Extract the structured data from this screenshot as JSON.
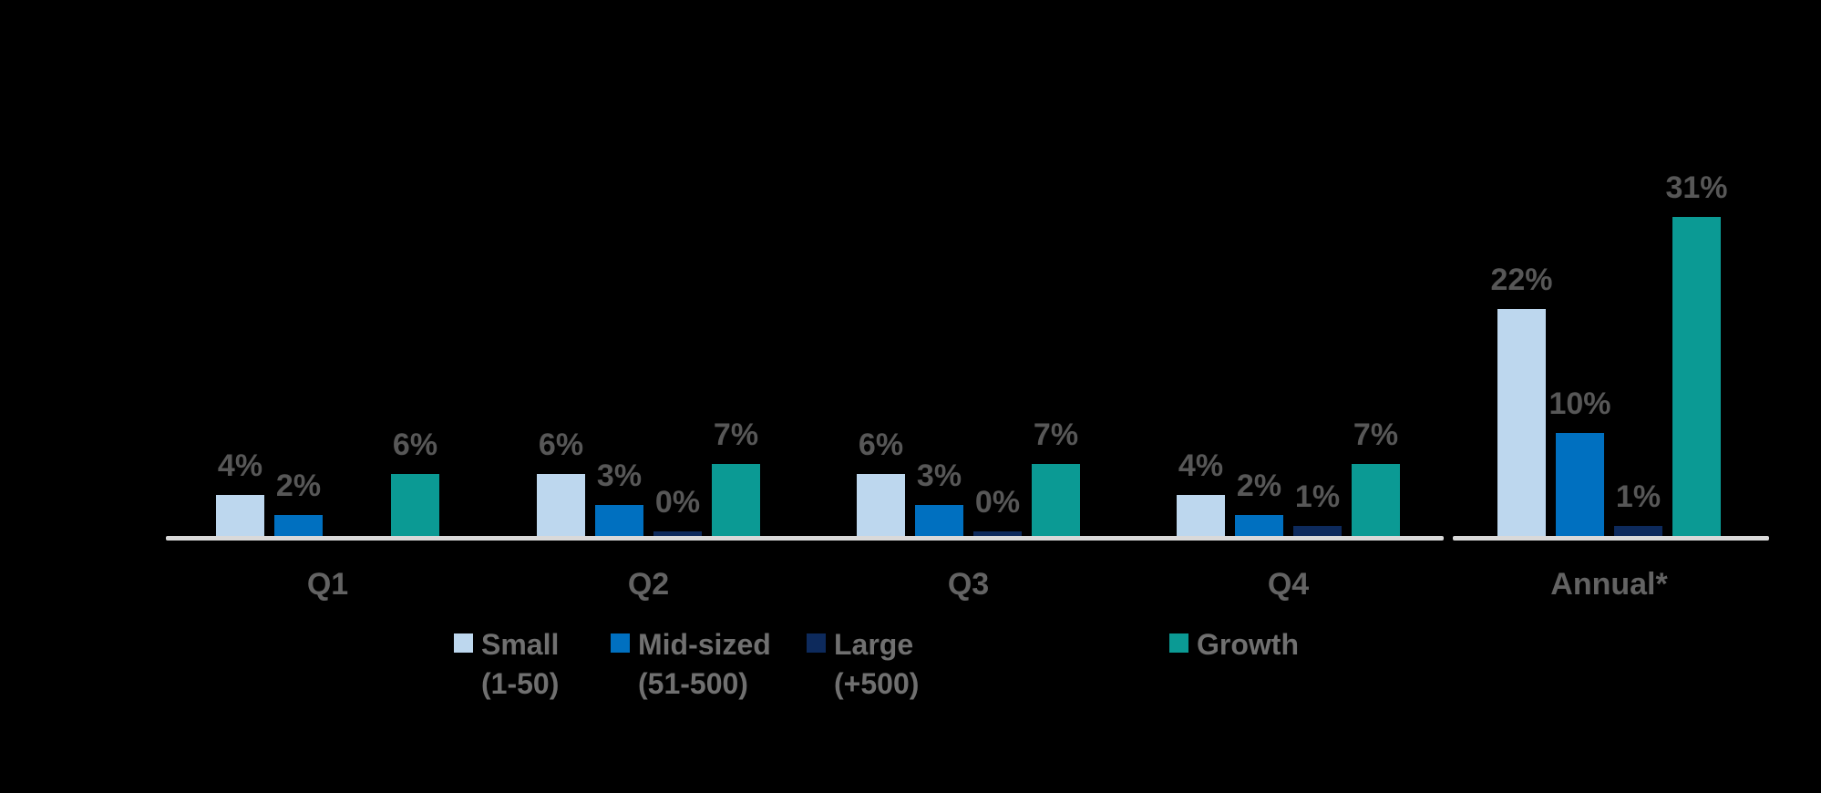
{
  "chart_data": {
    "type": "bar",
    "title": "",
    "xlabel": "",
    "ylabel": "",
    "categories": [
      "Q1",
      "Q2",
      "Q3",
      "Q4",
      "Annual*"
    ],
    "series": [
      {
        "key": "small",
        "name": "Small (1-50)",
        "legend_lines": [
          "Small",
          "(1-50)"
        ],
        "color": "#BDD7EE",
        "values": [
          4,
          6,
          6,
          4,
          22
        ]
      },
      {
        "key": "mid-sized",
        "name": "Mid-sized (51-500)",
        "legend_lines": [
          "Mid-sized",
          "(51-500)"
        ],
        "color": "#0070C0",
        "values": [
          2,
          3,
          3,
          2,
          10
        ]
      },
      {
        "key": "large",
        "name": "Large (+500)",
        "legend_lines": [
          "Large",
          "(+500)"
        ],
        "color": "#0D2A5C",
        "values": [
          null,
          0,
          0,
          1,
          1
        ]
      },
      {
        "key": "growth",
        "name": "Growth",
        "legend_lines": [
          "Growth"
        ],
        "color": "#0B9A94",
        "values": [
          6,
          7,
          7,
          7,
          31
        ]
      }
    ],
    "value_label_suffix": "%",
    "value_labels": {
      "small": [
        "4%",
        "6%",
        "6%",
        "4%",
        "22%"
      ],
      "mid-sized": [
        "2%",
        "3%",
        "3%",
        "2%",
        "10%"
      ],
      "large": [
        null,
        "0%",
        "0%",
        "1%",
        "1%"
      ],
      "growth": [
        "6%",
        "7%",
        "7%",
        "7%",
        "31%"
      ]
    },
    "ylim": [
      0,
      31
    ],
    "grid": false,
    "legend_position": "bottom",
    "axis_break_after_category": "Q4",
    "colors": {
      "baseline": "#D9D9D9",
      "value_label": "#575757",
      "category_label": "#636363",
      "legend_text": "#707070",
      "background": "#000000"
    }
  }
}
